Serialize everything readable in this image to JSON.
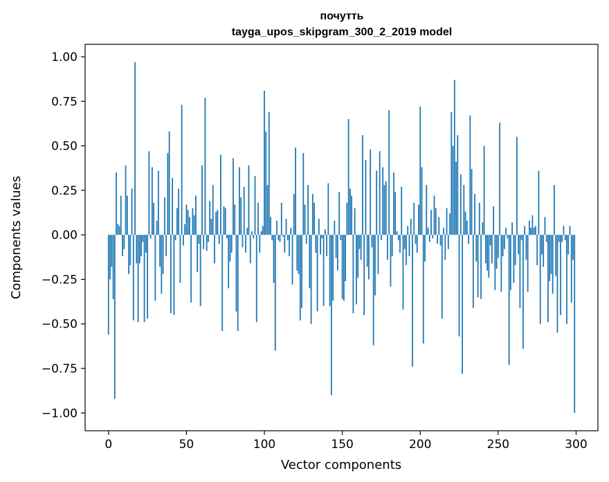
{
  "chart_data": {
    "type": "bar",
    "title": "почутть",
    "subtitle": "tayga_upos_skipgram_300_2_2019 model",
    "xlabel": "Vector components",
    "ylabel": "Components values",
    "xlim": [
      -15,
      314
    ],
    "ylim": [
      -1.1,
      1.07
    ],
    "xticks": [
      0,
      50,
      100,
      150,
      200,
      250,
      300
    ],
    "xtick_labels": [
      "0",
      "50",
      "100",
      "150",
      "200",
      "250",
      "300"
    ],
    "yticks": [
      1.0,
      0.75,
      0.5,
      0.25,
      0.0,
      -0.25,
      -0.5,
      -0.75,
      -1.0
    ],
    "ytick_labels": [
      "1.00",
      "0.75",
      "0.50",
      "0.25",
      "0.00",
      "−0.25",
      "−0.50",
      "−0.75",
      "−1.00"
    ],
    "grid": false,
    "x": "component index 0..299",
    "values": [
      -0.56,
      -0.25,
      -0.18,
      -0.36,
      -0.92,
      0.35,
      0.06,
      0.05,
      0.22,
      -0.12,
      -0.08,
      0.39,
      0.22,
      -0.22,
      -0.17,
      0.26,
      -0.48,
      0.97,
      -0.16,
      -0.49,
      -0.16,
      -0.12,
      -0.04,
      -0.49,
      -0.1,
      -0.47,
      0.47,
      -0.02,
      0.38,
      0.18,
      -0.37,
      0.08,
      0.36,
      -0.18,
      -0.33,
      -0.22,
      0.21,
      -0.12,
      0.46,
      0.58,
      -0.44,
      0.32,
      -0.45,
      -0.03,
      0.15,
      0.26,
      -0.27,
      0.73,
      -0.06,
      0.06,
      0.17,
      0.14,
      0.1,
      -0.38,
      0.15,
      0.11,
      0.22,
      -0.21,
      -0.05,
      -0.4,
      0.39,
      -0.08,
      0.77,
      -0.09,
      -0.04,
      0.19,
      0.09,
      0.28,
      -0.16,
      0.13,
      0.14,
      -0.05,
      0.45,
      -0.54,
      0.16,
      0.15,
      -0.02,
      -0.3,
      -0.15,
      -0.1,
      0.43,
      0.17,
      -0.43,
      -0.54,
      0.38,
      0.21,
      -0.07,
      0.27,
      -0.1,
      0.04,
      0.39,
      -0.16,
      0.02,
      -0.02,
      0.33,
      -0.49,
      0.18,
      -0.1,
      0.02,
      0.05,
      0.81,
      0.58,
      0.28,
      0.69,
      0.1,
      -0.03,
      -0.27,
      -0.65,
      0.08,
      -0.03,
      -0.04,
      0.18,
      -0.01,
      -0.1,
      0.09,
      -0.03,
      -0.12,
      0.04,
      -0.28,
      0.23,
      0.49,
      -0.2,
      -0.22,
      -0.48,
      -0.41,
      0.46,
      0.17,
      -0.05,
      0.28,
      -0.3,
      -0.5,
      0.23,
      0.18,
      -0.1,
      -0.43,
      0.09,
      -0.11,
      -0.02,
      -0.4,
      0.03,
      -0.12,
      0.29,
      -0.4,
      -0.9,
      -0.37,
      0.08,
      -0.13,
      -0.2,
      0.24,
      -0.03,
      -0.36,
      -0.37,
      -0.26,
      0.18,
      0.65,
      0.26,
      0.22,
      -0.44,
      0.15,
      -0.39,
      -0.24,
      -0.08,
      -0.14,
      0.56,
      -0.45,
      0.42,
      -0.18,
      -0.25,
      0.48,
      -0.07,
      -0.62,
      -0.34,
      0.36,
      -0.22,
      0.47,
      -0.03,
      0.38,
      0.28,
      0.3,
      -0.14,
      0.7,
      -0.29,
      -0.12,
      0.35,
      0.24,
      0.02,
      -0.03,
      -0.1,
      0.27,
      -0.42,
      -0.08,
      -0.17,
      0.05,
      -0.12,
      0.09,
      -0.74,
      0.18,
      -0.05,
      -0.1,
      0.17,
      0.72,
      0.38,
      -0.61,
      -0.15,
      0.28,
      0.04,
      -0.04,
      0.14,
      -0.02,
      0.22,
      0.15,
      -0.05,
      0.1,
      -0.06,
      -0.47,
      0.04,
      -0.14,
      0.15,
      -0.08,
      0.12,
      0.69,
      0.5,
      0.87,
      0.41,
      0.56,
      -0.57,
      0.34,
      -0.78,
      0.28,
      0.13,
      0.08,
      -0.05,
      0.67,
      0.37,
      -0.41,
      0.23,
      -0.15,
      -0.35,
      0.18,
      -0.36,
      0.07,
      0.5,
      -0.16,
      -0.2,
      -0.24,
      -0.06,
      -0.16,
      0.16,
      -0.31,
      -0.19,
      -0.13,
      0.63,
      -0.32,
      -0.12,
      -0.08,
      0.04,
      -0.02,
      -0.73,
      -0.31,
      0.07,
      -0.27,
      -0.17,
      0.55,
      -0.11,
      -0.41,
      -0.03,
      -0.64,
      0.05,
      -0.14,
      -0.32,
      0.08,
      0.04,
      0.11,
      0.04,
      0.05,
      -0.17,
      0.36,
      -0.5,
      -0.11,
      -0.18,
      0.1,
      -0.04,
      -0.49,
      -0.26,
      -0.22,
      -0.33,
      0.28,
      -0.23,
      -0.55,
      -0.04,
      -0.45,
      -0.04,
      0.05,
      -0.03,
      -0.5,
      -0.11,
      0.05,
      -0.38,
      -0.14,
      -1.0
    ]
  }
}
